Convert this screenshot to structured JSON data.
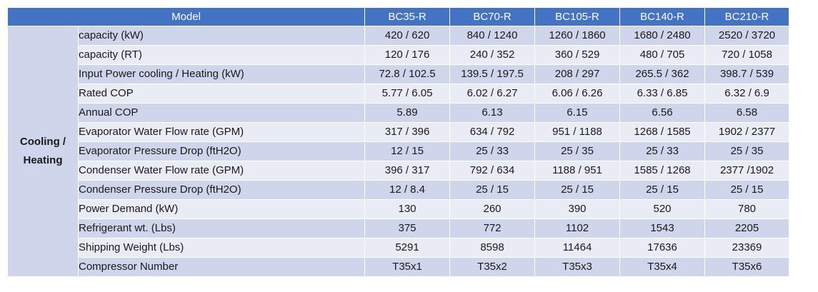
{
  "header": {
    "model_label": "Model",
    "models": [
      "BC35-R",
      "BC70-R",
      "BC105-R",
      "BC140-R",
      "BC210-R"
    ]
  },
  "group": {
    "label_line1": "Cooling /",
    "label_line2": "Heating"
  },
  "rows": [
    {
      "param": "capacity   (kW)",
      "values": [
        "420 / 620",
        "840 / 1240",
        "1260 / 1860",
        "1680 / 2480",
        "2520 / 3720"
      ]
    },
    {
      "param": "capacity   (RT)",
      "values": [
        "120 / 176",
        "240 / 352",
        "360 / 529",
        "480 / 705",
        "720 / 1058"
      ]
    },
    {
      "param": "Input Power cooling / Heating (kW)",
      "values": [
        "72.8 / 102.5",
        "139.5 / 197.5",
        "208 / 297",
        "265.5 / 362",
        "398.7 / 539"
      ]
    },
    {
      "param": "Rated COP",
      "values": [
        "5.77 / 6.05",
        "6.02 / 6.27",
        "6.06 / 6.26",
        "6.33 / 6.85",
        "6.32 / 6.9"
      ]
    },
    {
      "param": "Annual COP",
      "values": [
        "5.89",
        "6.13",
        "6.15",
        "6.56",
        "6.58"
      ]
    },
    {
      "param": "Evaporator Water Flow rate (GPM)",
      "values": [
        "317 / 396",
        "634 / 792",
        "951 / 1188",
        "1268 / 1585",
        "1902 / 2377"
      ]
    },
    {
      "param": "Evaporator Pressure Drop (ftH2O)",
      "values": [
        "12 / 15",
        "25 / 33",
        "25 / 35",
        "25 / 33",
        "25 / 35"
      ]
    },
    {
      "param": "Condenser Water Flow rate (GPM)",
      "values": [
        "396 / 317",
        "792 / 634",
        "1188 / 951",
        "1585 / 1268",
        "2377 /1902"
      ]
    },
    {
      "param": "Condenser Pressure Drop (ftH2O)",
      "values": [
        "12 / 8.4",
        "25 / 15",
        "25 / 15",
        "25 / 15",
        "25 / 15"
      ]
    },
    {
      "param": "Power Demand (kW)",
      "values": [
        "130",
        "260",
        "390",
        "520",
        "780"
      ]
    },
    {
      "param": "Refrigerant wt. (Lbs)",
      "values": [
        "375",
        "772",
        "1102",
        "1543",
        "2205"
      ]
    },
    {
      "param": "Shipping Weight (Lbs)",
      "values": [
        "5291",
        "8598",
        "11464",
        "17636",
        "23369"
      ]
    },
    {
      "param": "Compressor Number",
      "values": [
        "T35x1",
        "T35x2",
        "T35x3",
        "T35x4",
        "T35x6"
      ]
    }
  ]
}
